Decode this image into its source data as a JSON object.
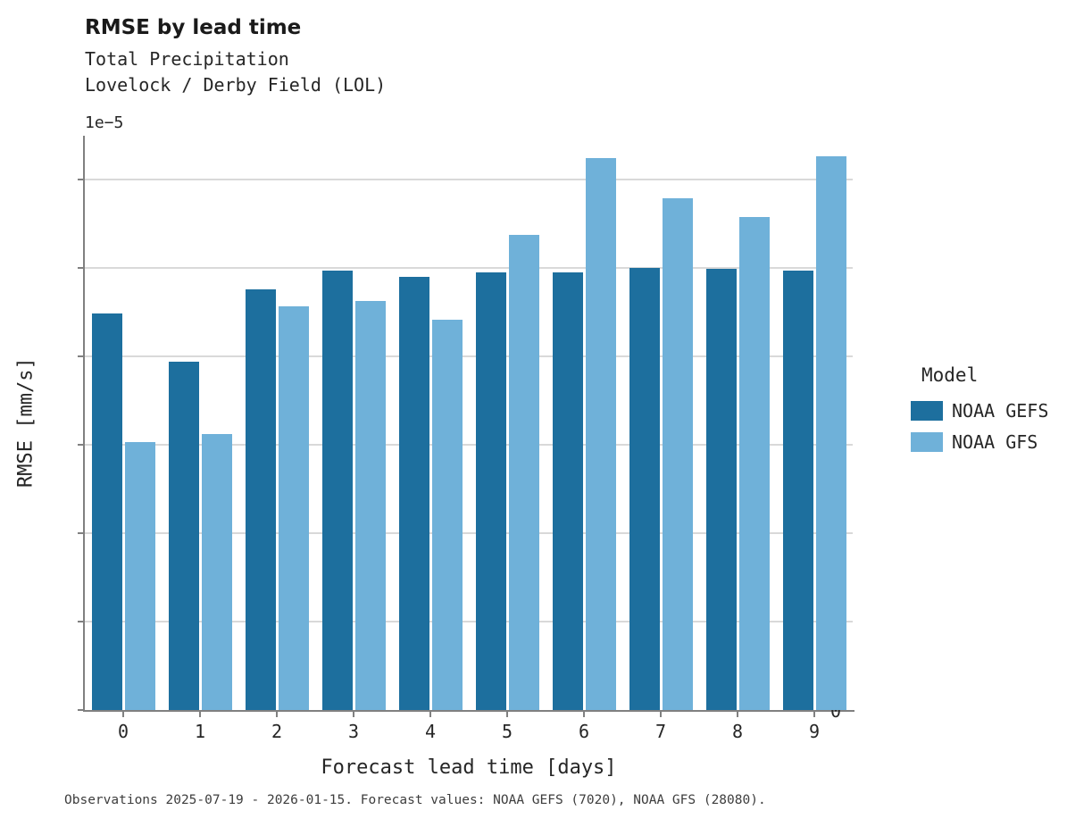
{
  "header": {
    "title": "RMSE by lead time",
    "subtitle_line1": "Total Precipitation",
    "subtitle_line2": "Lovelock / Derby Field (LOL)"
  },
  "axes": {
    "offset_label": "1e−5",
    "x_title": "Forecast lead time [days]",
    "y_title": "RMSE [mm/s]"
  },
  "legend": {
    "title": "Model",
    "entries": [
      {
        "label": "NOAA GEFS",
        "color": "#1d6f9e"
      },
      {
        "label": "NOAA GFS",
        "color": "#6fb1d9"
      }
    ]
  },
  "footer": {
    "text": "Observations 2025-07-19 - 2026-01-15. Forecast values: NOAA GEFS (7020), NOAA GFS (28080)."
  },
  "chart_data": {
    "type": "bar",
    "title": "RMSE by lead time",
    "subtitle": "Total Precipitation — Lovelock / Derby Field (LOL)",
    "xlabel": "Forecast lead time [days]",
    "ylabel": "RMSE [mm/s]",
    "value_scale": "1e-5",
    "categories": [
      0,
      1,
      2,
      3,
      4,
      5,
      6,
      7,
      8,
      9
    ],
    "series": [
      {
        "name": "NOAA GEFS",
        "color": "#1d6f9e",
        "values": [
          4.49,
          3.94,
          4.76,
          4.97,
          4.9,
          4.95,
          4.95,
          5.0,
          4.99,
          4.97
        ]
      },
      {
        "name": "NOAA GFS",
        "color": "#6fb1d9",
        "values": [
          3.03,
          3.12,
          4.57,
          4.63,
          4.42,
          5.38,
          6.25,
          5.79,
          5.58,
          6.27
        ]
      }
    ],
    "ylim": [
      0,
      6.5
    ],
    "yticks": [
      0,
      1,
      2,
      3,
      4,
      5,
      6
    ],
    "grid": "horizontal",
    "legend_position": "right",
    "legend_title": "Model"
  }
}
